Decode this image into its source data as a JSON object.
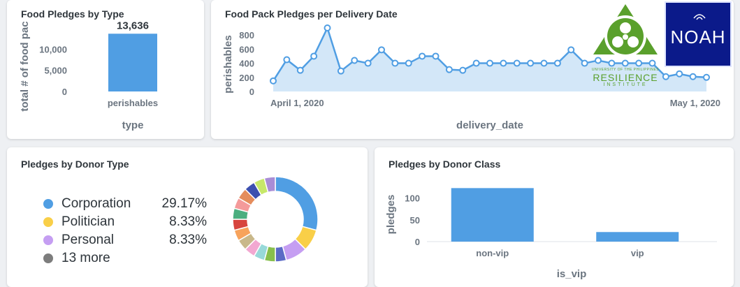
{
  "cards": {
    "food_pledges_by_type": {
      "title": "Food Pledges by Type"
    },
    "food_pack_pledges": {
      "title": "Food Pack Pledges per Delivery Date"
    },
    "pledges_by_donor_type": {
      "title": "Pledges by Donor Type"
    },
    "pledges_by_donor_class": {
      "title": "Pledges by Donor Class"
    }
  },
  "logos": {
    "resilience": {
      "line1": "UNIVERSITY OF THE PHILIPPINES",
      "line2": "RESILIENCE",
      "line3": "INSTITUTE",
      "color": "#5aa02c"
    },
    "noah": {
      "text": "NOAH"
    }
  },
  "colors": {
    "bar": "#509ee3",
    "accent": "#509ee3"
  },
  "chart_data": [
    {
      "id": "food_pledges_by_type",
      "type": "bar",
      "title": "Food Pledges by Type",
      "categories": [
        "perishables"
      ],
      "values": [
        13636
      ],
      "value_labels": [
        "13,636"
      ],
      "xlabel": "type",
      "ylabel": "total # of food pac",
      "yticks": [
        "0",
        "5,000",
        "10,000"
      ],
      "ylim": [
        0,
        15000
      ],
      "grid": false
    },
    {
      "id": "food_pack_pledges",
      "type": "area",
      "title": "Food Pack Pledges per Delivery Date",
      "xlabel": "delivery_date",
      "ylabel": "perishables",
      "x_tick_labels": [
        "April 1, 2020",
        "May 1, 2020"
      ],
      "yticks": [
        "0",
        "200",
        "400",
        "600",
        "800"
      ],
      "ylim": [
        0,
        900
      ],
      "values": [
        150,
        450,
        300,
        500,
        900,
        290,
        440,
        400,
        590,
        400,
        400,
        500,
        500,
        310,
        300,
        400,
        400,
        400,
        400,
        400,
        400,
        400,
        590,
        400,
        440,
        400,
        400,
        400,
        400,
        210,
        250,
        210,
        200
      ],
      "grid": false
    },
    {
      "id": "pledges_by_donor_type",
      "type": "pie",
      "title": "Pledges by Donor Type",
      "legend": [
        {
          "name": "Corporation",
          "pct": "29.17%",
          "color": "#509ee3"
        },
        {
          "name": "Politician",
          "pct": "8.33%",
          "color": "#f9cf48"
        },
        {
          "name": "Personal",
          "pct": "8.33%",
          "color": "#c59ef2"
        },
        {
          "name": "13 more",
          "pct": "",
          "color": "#7d7d7d"
        }
      ],
      "slices": [
        {
          "name": "Corporation",
          "value": 29.17,
          "color": "#509ee3"
        },
        {
          "name": "Politician",
          "value": 8.33,
          "color": "#f9cf48"
        },
        {
          "name": "Personal",
          "value": 8.33,
          "color": "#c59ef2"
        },
        {
          "value": 4.17,
          "color": "#5b6ac6"
        },
        {
          "value": 4.17,
          "color": "#88bf4d"
        },
        {
          "value": 4.17,
          "color": "#98d9d9"
        },
        {
          "value": 4.17,
          "color": "#f2a8d1"
        },
        {
          "value": 4.17,
          "color": "#c9b88a"
        },
        {
          "value": 4.17,
          "color": "#f7a35c"
        },
        {
          "value": 4.17,
          "color": "#d7443e"
        },
        {
          "value": 4.17,
          "color": "#4cae7f"
        },
        {
          "value": 4.17,
          "color": "#f49a9a"
        },
        {
          "value": 4.17,
          "color": "#e58d5c"
        },
        {
          "value": 4.17,
          "color": "#3c50b0"
        },
        {
          "value": 4.17,
          "color": "#c7e86a"
        },
        {
          "value": 4.17,
          "color": "#a98dd6"
        }
      ],
      "legend_placement": "left"
    },
    {
      "id": "pledges_by_donor_class",
      "type": "bar",
      "title": "Pledges by Donor Class",
      "categories": [
        "non-vip",
        "vip"
      ],
      "values": [
        123,
        22
      ],
      "xlabel": "is_vip",
      "ylabel": "pledges",
      "yticks": [
        "0",
        "50",
        "100"
      ],
      "ylim": [
        0,
        130
      ],
      "grid": false
    }
  ]
}
